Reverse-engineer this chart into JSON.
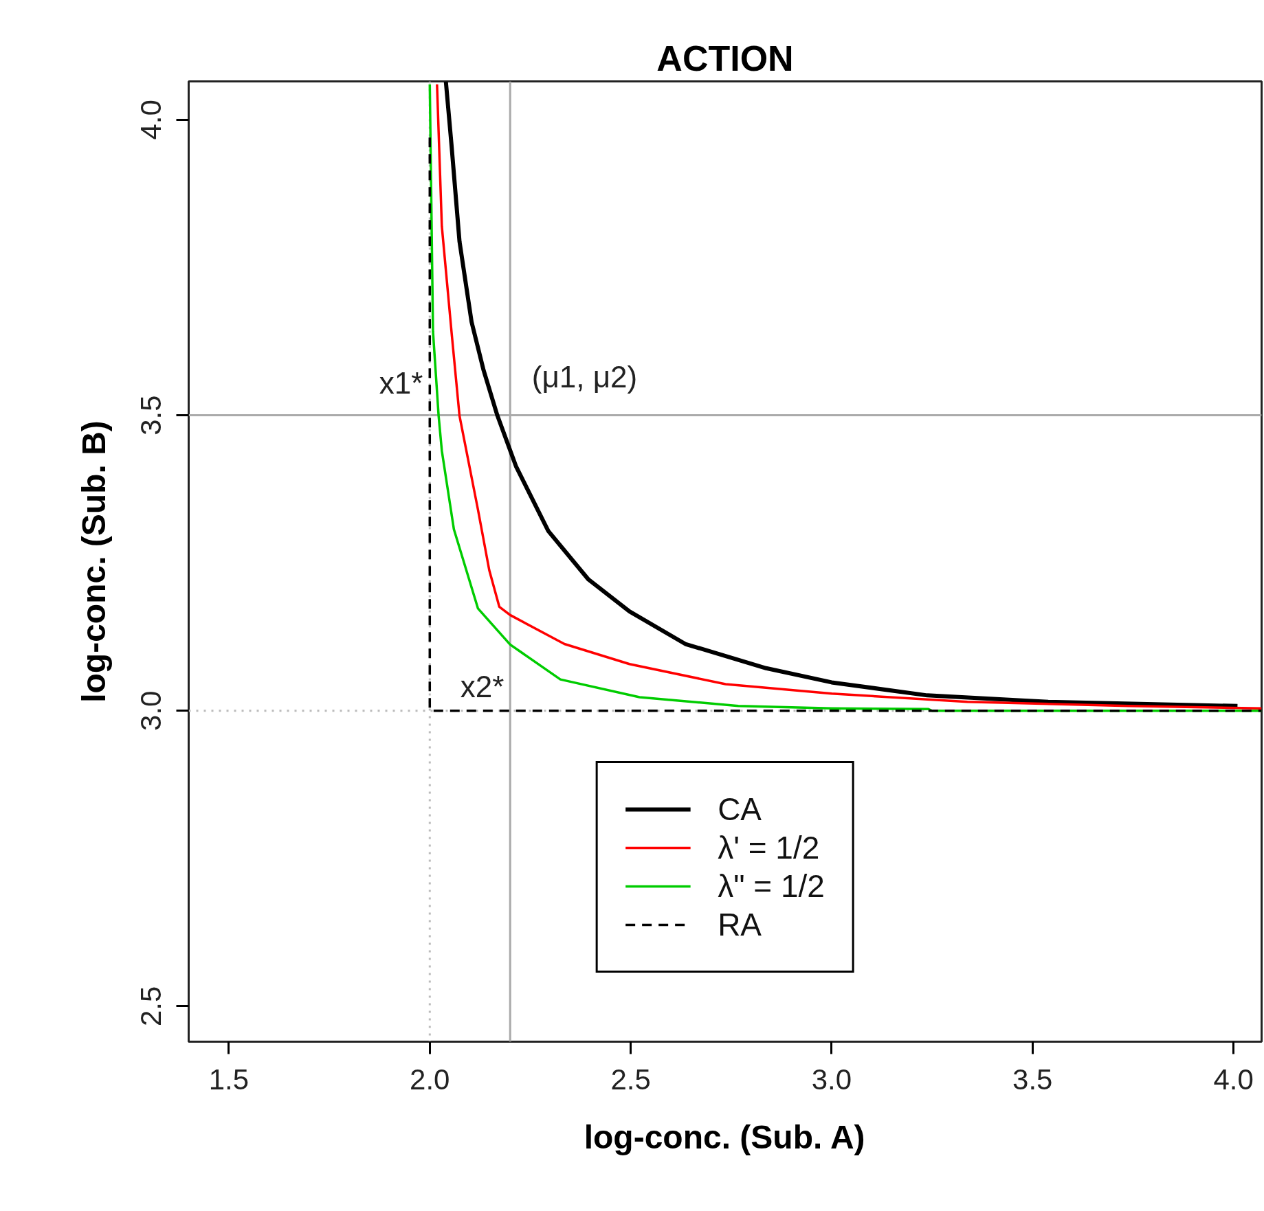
{
  "chart_data": {
    "type": "line",
    "title": "ACTION",
    "xlabel": "log-conc. (Sub. A)",
    "ylabel": "log-conc. (Sub. B)",
    "xlim": [
      1.4,
      4.07
    ],
    "ylim": [
      2.44,
      4.065
    ],
    "xticks": [
      1.5,
      {
        "value": 2,
        "label": "2.0"
      },
      2.5,
      {
        "value": 3,
        "label": "3.0"
      },
      3.5,
      {
        "value": 4,
        "label": "4.0"
      }
    ],
    "yticks": [
      2.5,
      {
        "value": 3,
        "label": "3.0"
      },
      3.5,
      {
        "value": 4,
        "label": "4.0"
      }
    ],
    "grid": false,
    "legend": "bottom",
    "series": [
      {
        "name": "CA",
        "color": "#000000",
        "line_style": "solid",
        "x": [
          2.04,
          2.054,
          2.074,
          2.104,
          2.134,
          2.168,
          2.215,
          2.295,
          2.395,
          2.497,
          2.636,
          2.837,
          3.0,
          3.238,
          3.539,
          4.01
        ],
        "values": [
          4.065,
          3.958,
          3.794,
          3.658,
          3.576,
          3.5,
          3.413,
          3.304,
          3.222,
          3.168,
          3.113,
          3.072,
          3.048,
          3.026,
          3.015,
          3.008
        ]
      },
      {
        "name": "λ' = 1/2",
        "color": "#ff0000",
        "line_style": "solid",
        "x": [
          2.018,
          2.03,
          2.054,
          2.074,
          2.12,
          2.148,
          2.173,
          2.2,
          2.335,
          2.497,
          2.736,
          3.0,
          3.338,
          3.739,
          4.07
        ],
        "values": [
          4.06,
          3.82,
          3.642,
          3.499,
          3.34,
          3.238,
          3.176,
          3.162,
          3.113,
          3.079,
          3.045,
          3.029,
          3.015,
          3.008,
          3.004
        ]
      },
      {
        "name": "λ\" = 1/2",
        "color": "#00cc00",
        "line_style": "solid",
        "x": [
          2.0,
          2.008,
          2.022,
          2.03,
          2.06,
          2.12,
          2.2,
          2.325,
          2.522,
          2.768,
          3.0,
          3.24,
          3.25,
          4.07
        ],
        "values": [
          4.06,
          3.642,
          3.499,
          3.44,
          3.307,
          3.173,
          3.112,
          3.053,
          3.023,
          3.008,
          3.004,
          3.003,
          3.0,
          3.0
        ]
      },
      {
        "name": "RA",
        "color": "#000000",
        "line_style": "dashed",
        "x": [
          2.0,
          2.0,
          4.07
        ],
        "values": [
          3.97,
          3.0,
          3.0
        ]
      }
    ],
    "ref_lines": [
      {
        "axis": "x",
        "value": 2.2,
        "label": null,
        "color": "#aaaaaa",
        "line_style": "solid"
      },
      {
        "axis": "y",
        "value": 3.5,
        "label": null,
        "color": "#aaaaaa",
        "line_style": "solid"
      },
      {
        "axis": "x",
        "value": 2.0,
        "label": null,
        "color": "#bbbbbb",
        "line_style": "dotted"
      },
      {
        "axis": "y",
        "value": 3.0,
        "label": null,
        "color": "#bbbbbb",
        "line_style": "dotted"
      }
    ],
    "annotations": [
      "x1*",
      "(μ1, μ2)",
      "x2*"
    ]
  }
}
